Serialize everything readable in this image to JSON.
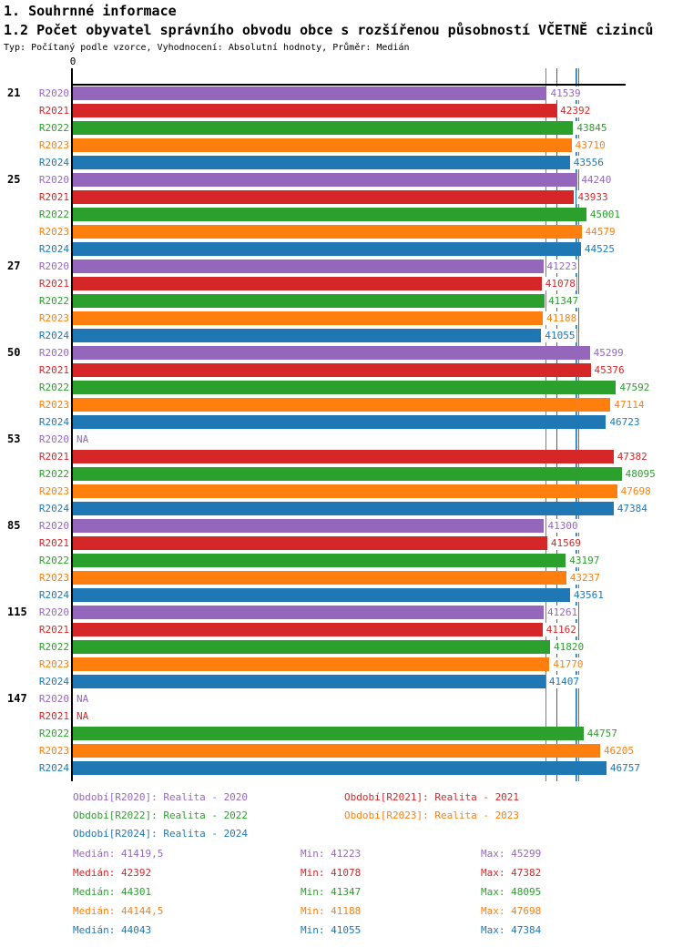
{
  "header": {
    "title1": "1. Souhrnné informace",
    "title2": "1.2 Počet obyvatel správního obvodu obce s rozšířenou působností VČETNĚ cizinců",
    "subtitle": "Typ: Počítaný podle vzorce, Vyhodnocení: Absolutní hodnoty, Průměr: Medián"
  },
  "chart_data": {
    "type": "bar",
    "orientation": "horizontal",
    "title": "1.2 Počet obyvatel správního obvodu obce s rozšířenou působností VČETNĚ cizinců",
    "axis": {
      "zero_label": "0",
      "xlim": [
        0,
        48600
      ],
      "grid": false
    },
    "na_label": "NA",
    "categories": [
      "21",
      "25",
      "27",
      "50",
      "53",
      "85",
      "115",
      "147"
    ],
    "series": [
      {
        "name": "R2020",
        "legend": "Období[R2020]: Realita - 2020",
        "color": "#9467bd",
        "values": [
          41539,
          44240,
          41223,
          45299,
          null,
          41300,
          41261,
          null
        ],
        "median": 41419.5,
        "median_label": "Medián: 41419,5",
        "min_label": "Min: 41223",
        "max_label": "Max: 45299"
      },
      {
        "name": "R2021",
        "legend": "Období[R2021]: Realita - 2021",
        "color": "#d62728",
        "values": [
          42392,
          43933,
          41078,
          45376,
          47382,
          41569,
          41162,
          null
        ],
        "median": 42392,
        "median_label": "Medián: 42392",
        "min_label": "Min: 41078",
        "max_label": "Max: 47382"
      },
      {
        "name": "R2022",
        "legend": "Období[R2022]: Realita - 2022",
        "color": "#2ca02c",
        "values": [
          43845,
          45001,
          41347,
          47592,
          48095,
          43197,
          41820,
          44757
        ],
        "median": 44301,
        "median_label": "Medián: 44301",
        "min_label": "Min: 41347",
        "max_label": "Max: 48095"
      },
      {
        "name": "R2023",
        "legend": "Období[R2023]: Realita - 2023",
        "color": "#ff7f0e",
        "values": [
          43710,
          44579,
          41188,
          47114,
          47698,
          43237,
          41770,
          46205
        ],
        "median": 44144.5,
        "median_label": "Medián: 44144,5",
        "min_label": "Min: 41188",
        "max_label": "Max: 47698"
      },
      {
        "name": "R2024",
        "legend": "Období[R2024]: Realita - 2024",
        "color": "#1f77b4",
        "values": [
          43556,
          44525,
          41055,
          46723,
          47384,
          43561,
          41407,
          46757
        ],
        "median": 44043,
        "median_label": "Medián: 44043",
        "min_label": "Min: 41055",
        "max_label": "Max: 47384"
      }
    ]
  }
}
